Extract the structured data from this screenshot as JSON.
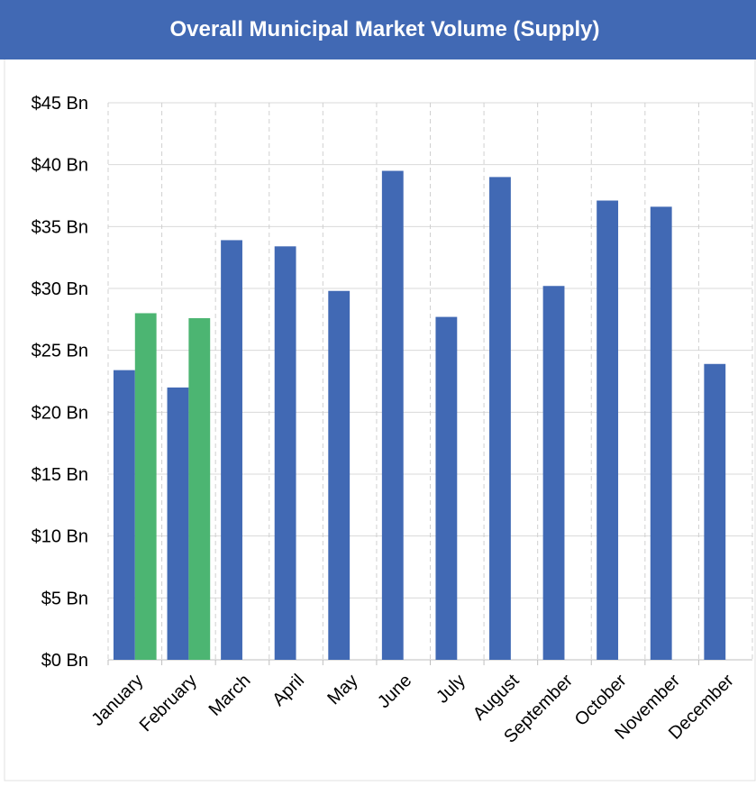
{
  "chart_data": {
    "type": "bar",
    "title": "Overall Municipal Market Volume (Supply)",
    "categories": [
      "January",
      "February",
      "March",
      "April",
      "May",
      "June",
      "July",
      "August",
      "September",
      "October",
      "November",
      "December"
    ],
    "series": [
      {
        "color": "#4169b4",
        "values": [
          23.4,
          22.0,
          33.9,
          33.4,
          29.8,
          39.5,
          27.7,
          39.0,
          30.2,
          37.1,
          36.6,
          23.9
        ]
      },
      {
        "color": "#4cb572",
        "values": [
          28.0,
          27.6,
          null,
          null,
          null,
          null,
          null,
          null,
          null,
          null,
          null,
          null
        ]
      }
    ],
    "ylim": [
      0,
      45
    ],
    "yticks": [
      {
        "value": 0,
        "label": "$0 Bn"
      },
      {
        "value": 5,
        "label": "$5 Bn"
      },
      {
        "value": 10,
        "label": "$10 Bn"
      },
      {
        "value": 15,
        "label": "$15 Bn"
      },
      {
        "value": 20,
        "label": "$20 Bn"
      },
      {
        "value": 25,
        "label": "$25 Bn"
      },
      {
        "value": 30,
        "label": "$30 Bn"
      },
      {
        "value": 35,
        "label": "$35 Bn"
      },
      {
        "value": 40,
        "label": "$40 Bn"
      },
      {
        "value": 45,
        "label": "$45 Bn"
      }
    ],
    "grid": true
  }
}
